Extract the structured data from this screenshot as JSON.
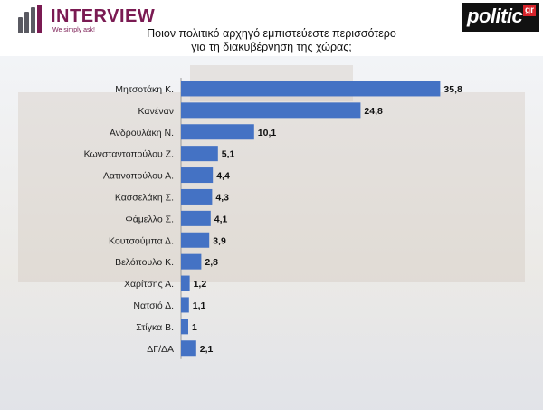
{
  "header": {
    "brand": "INTERVIEW",
    "brand_tagline": "We simply ask!",
    "partner": "politic",
    "partner_suffix": "gr"
  },
  "colors": {
    "bar": "#4472c4",
    "brand": "#7a1a52",
    "partner_bg": "#111111",
    "partner_accent": "#d6232a"
  },
  "chart_data": {
    "type": "bar",
    "orientation": "horizontal",
    "title": "Ποιον πολιτικό αρχηγό εμπιστεύεστε περισσότερο για τη διακυβέρνηση της χώρας;",
    "title_lines": [
      "Ποιον πολιτικό αρχηγό εμπιστεύεστε περισσότερο",
      "για τη διακυβέρνηση της χώρας;"
    ],
    "categories": [
      "Μητσοτάκη Κ.",
      "Κανέναν",
      "Ανδρουλάκη Ν.",
      "Κωνσταντοπούλου Ζ.",
      "Λατινοπούλου Α.",
      "Κασσελάκη Σ.",
      "Φάμελλο Σ.",
      "Κουτσούμπα Δ.",
      "Βελόπουλο Κ.",
      "Χαρίτσης Α.",
      "Νατσιό Δ.",
      "Στίγκα Β.",
      "ΔΓ/ΔΑ"
    ],
    "values": [
      35.8,
      24.8,
      10.1,
      5.1,
      4.4,
      4.3,
      4.1,
      3.9,
      2.8,
      1.2,
      1.1,
      1,
      2.1
    ],
    "value_labels": [
      "35,8",
      "24,8",
      "10,1",
      "5,1",
      "4,4",
      "4,3",
      "4,1",
      "3,9",
      "2,8",
      "1,2",
      "1,1",
      "1",
      "2,1"
    ],
    "xlim": [
      0,
      40
    ],
    "grid": false,
    "legend": "none"
  }
}
